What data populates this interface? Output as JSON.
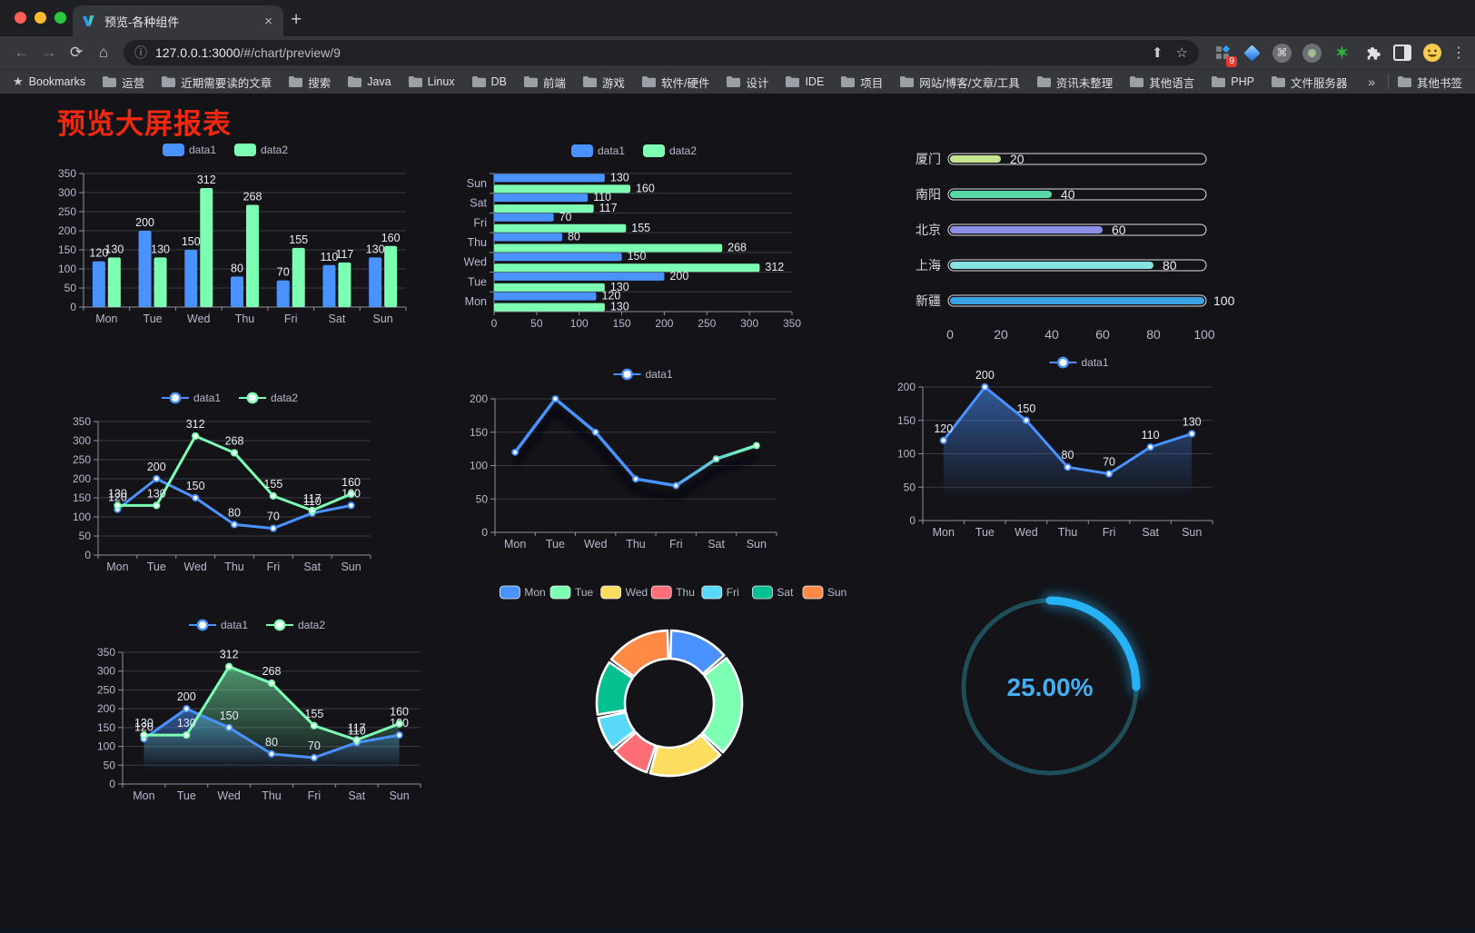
{
  "browser": {
    "tab": {
      "title": "预览-各种组件",
      "close": "×",
      "new_tab": "+"
    },
    "nav": {
      "back": "←",
      "forward": "→",
      "reload": "⟳",
      "home": "⌂"
    },
    "omnibox": {
      "info": "ⓘ",
      "url_host": "127.0.0.1:3000",
      "url_path": "/#/chart/preview/9",
      "share": "⬆",
      "star": "☆"
    },
    "extensions": {
      "badge": "9",
      "cmd": "⌘",
      "green_star": "✶",
      "menu": "⋮"
    },
    "bookmarks": {
      "star": "★",
      "first_label": "Bookmarks",
      "items": [
        "运营",
        "近期需要读的文章",
        "搜索",
        "Java",
        "Linux",
        "DB",
        "前端",
        "游戏",
        "软件/硬件",
        "设计",
        "IDE",
        "项目",
        "网站/博客/文章/工具",
        "资讯未整理",
        "其他语言",
        "PHP",
        "文件服务器"
      ],
      "overflow": "»",
      "other": "其他书签"
    }
  },
  "page": {
    "title": "预览大屏报表",
    "title_color": "#f2280e"
  },
  "colors": {
    "axis_label": "#b9b8ce",
    "axis_line": "#8f93a0",
    "grid_line": "#3b3b45",
    "data_label": "#e9ecf5",
    "series_blue": "#4992ff",
    "series_green": "#7cffb2"
  },
  "chart_data": [
    {
      "id": "c1",
      "type": "bar",
      "orient": "vertical",
      "legend": "rect",
      "labels": true,
      "categories": [
        "Mon",
        "Tue",
        "Wed",
        "Thu",
        "Fri",
        "Sat",
        "Sun"
      ],
      "ylim": [
        0,
        350
      ],
      "ytick": 50,
      "series": [
        {
          "name": "data1",
          "color": "#4992ff",
          "values": [
            120,
            200,
            150,
            80,
            70,
            110,
            130
          ]
        },
        {
          "name": "data2",
          "color": "#7cffb2",
          "values": [
            130,
            130,
            312,
            268,
            155,
            117,
            160
          ]
        }
      ]
    },
    {
      "id": "c2",
      "type": "bar",
      "orient": "horizontal",
      "legend": "rect",
      "labels": true,
      "categories": [
        "Mon",
        "Tue",
        "Wed",
        "Thu",
        "Fri",
        "Sat",
        "Sun"
      ],
      "xlim": [
        0,
        350
      ],
      "xtick": 50,
      "series": [
        {
          "name": "data1",
          "color": "#4992ff",
          "values": [
            120,
            200,
            150,
            80,
            70,
            110,
            130
          ]
        },
        {
          "name": "data2",
          "color": "#7cffb2",
          "values": [
            130,
            130,
            312,
            268,
            155,
            117,
            160
          ]
        }
      ]
    },
    {
      "id": "c3",
      "type": "bar",
      "variant": "capsule",
      "categories": [
        "厦门",
        "南阳",
        "北京",
        "上海",
        "新疆"
      ],
      "values": [
        20,
        40,
        60,
        80,
        100
      ],
      "colors": [
        "#c6e58d",
        "#55d8a4",
        "#8c90e4",
        "#84e3e0",
        "#3aa2e2"
      ],
      "max": 100,
      "xticks": [
        0,
        20,
        40,
        60,
        80,
        100
      ]
    },
    {
      "id": "c4",
      "type": "line",
      "legend": "line",
      "labels": true,
      "categories": [
        "Mon",
        "Tue",
        "Wed",
        "Thu",
        "Fri",
        "Sat",
        "Sun"
      ],
      "ylim": [
        0,
        350
      ],
      "ytick": 50,
      "series": [
        {
          "name": "data1",
          "color": "#4992ff",
          "values": [
            120,
            200,
            150,
            80,
            70,
            110,
            130
          ]
        },
        {
          "name": "data2",
          "color": "#7cffb2",
          "values": [
            130,
            130,
            312,
            268,
            155,
            117,
            160
          ]
        }
      ]
    },
    {
      "id": "c5",
      "type": "line",
      "variant": "gradient-shadow",
      "legend": "line",
      "labels": false,
      "categories": [
        "Mon",
        "Tue",
        "Wed",
        "Thu",
        "Fri",
        "Sat",
        "Sun"
      ],
      "ylim": [
        0,
        200
      ],
      "ytick": 50,
      "series": [
        {
          "name": "data1",
          "color": "#4992ff",
          "color_end": "#7cffb2",
          "values": [
            120,
            200,
            150,
            80,
            70,
            110,
            130
          ]
        }
      ]
    },
    {
      "id": "c6",
      "type": "area",
      "legend": "line",
      "labels": true,
      "categories": [
        "Mon",
        "Tue",
        "Wed",
        "Thu",
        "Fri",
        "Sat",
        "Sun"
      ],
      "ylim": [
        0,
        200
      ],
      "ytick": 50,
      "series": [
        {
          "name": "data1",
          "color": "#4992ff",
          "values": [
            120,
            200,
            150,
            80,
            70,
            110,
            130
          ]
        }
      ]
    },
    {
      "id": "c7",
      "type": "area",
      "legend": "line",
      "labels": true,
      "categories": [
        "Mon",
        "Tue",
        "Wed",
        "Thu",
        "Fri",
        "Sat",
        "Sun"
      ],
      "ylim": [
        0,
        350
      ],
      "ytick": 50,
      "series": [
        {
          "name": "data1",
          "color": "#4992ff",
          "values": [
            120,
            200,
            150,
            80,
            70,
            110,
            130
          ]
        },
        {
          "name": "data2",
          "color": "#7cffb2",
          "values": [
            130,
            130,
            312,
            268,
            155,
            117,
            160
          ]
        }
      ]
    },
    {
      "id": "c8",
      "type": "pie",
      "variant": "donut",
      "legend": "pie",
      "categories": [
        "Mon",
        "Tue",
        "Wed",
        "Thu",
        "Fri",
        "Sat",
        "Sun"
      ],
      "values": [
        120,
        200,
        150,
        80,
        70,
        110,
        130
      ],
      "colors": [
        "#4992ff",
        "#7cffb2",
        "#fddd60",
        "#ff6e76",
        "#58d9f9",
        "#05c091",
        "#ff8a45"
      ]
    },
    {
      "id": "c9",
      "type": "gauge",
      "value": 25,
      "label": "25.00%",
      "progress_color": "#27b2f6",
      "track_color": "#1d4e5a",
      "text_color": "#45aef0"
    }
  ]
}
